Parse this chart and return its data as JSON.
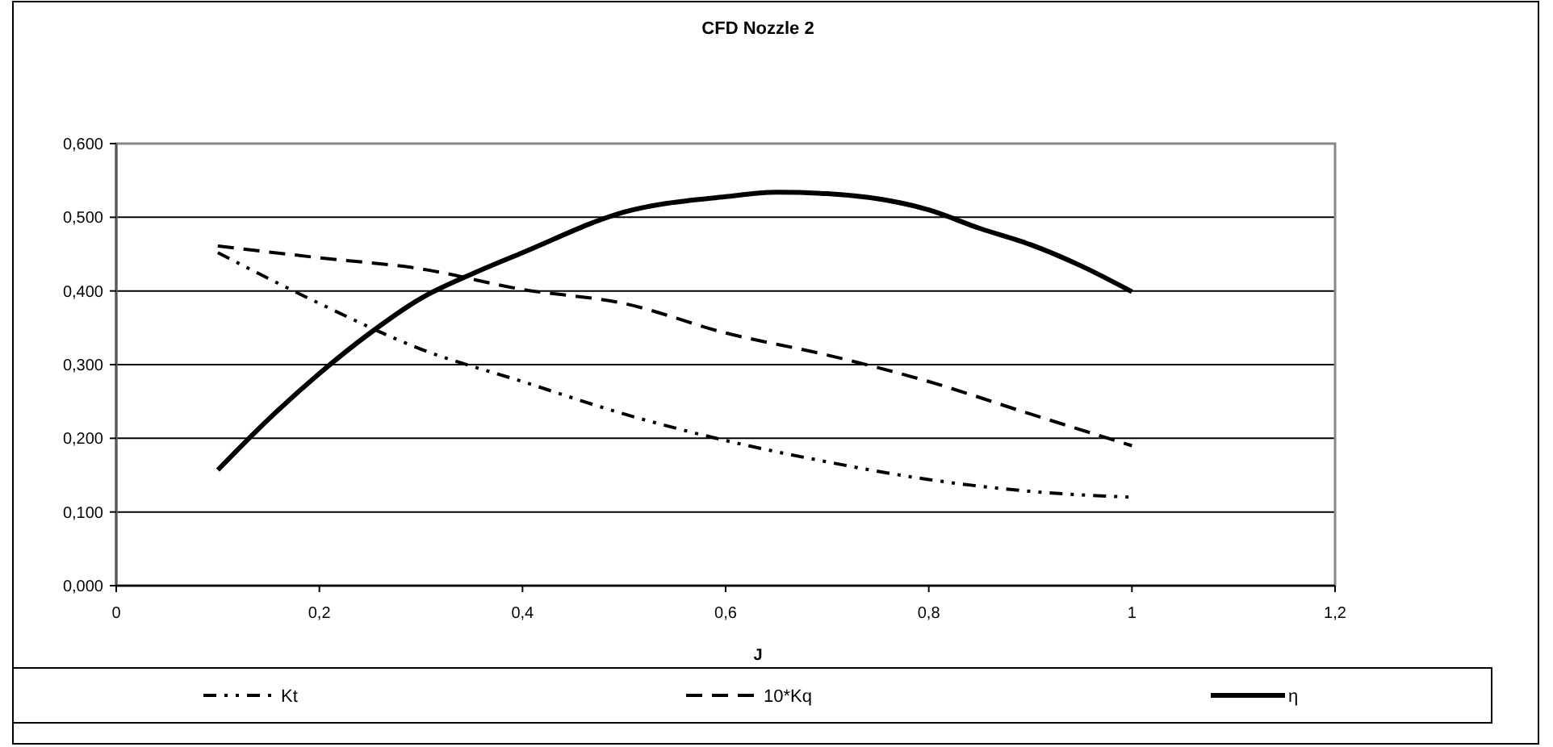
{
  "chart_data": {
    "type": "line",
    "title": "CFD Nozzle 2",
    "xlabel": "J",
    "xlim": [
      0,
      1.2
    ],
    "xticks": [
      0,
      {
        "value": 0.2,
        "label": "0,2"
      },
      {
        "value": 0.4,
        "label": "0,4"
      },
      {
        "value": 0.6,
        "label": "0,6"
      },
      {
        "value": 0.8,
        "label": "0,8"
      },
      1,
      {
        "value": 1.2,
        "label": "1,2"
      }
    ],
    "ylim": [
      0,
      0.6
    ],
    "yticks": [
      {
        "value": 0,
        "label": "0,000"
      },
      {
        "value": 0.1,
        "label": "0,100"
      },
      {
        "value": 0.2,
        "label": "0,200"
      },
      {
        "value": 0.3,
        "label": "0,300"
      },
      {
        "value": 0.4,
        "label": "0,400"
      },
      {
        "value": 0.5,
        "label": "0,500"
      },
      {
        "value": 0.6,
        "label": "0,600"
      }
    ],
    "grid": "y",
    "legend": "bottom",
    "marker": "none",
    "series": [
      {
        "name": "Kt",
        "color": "#000000",
        "line_style": "dotted",
        "x": [
          0.1,
          0.2,
          0.3,
          0.4,
          0.5,
          0.6,
          0.7,
          0.8,
          0.9,
          1.0
        ],
        "values": [
          0.452,
          0.383,
          0.321,
          0.277,
          0.233,
          0.197,
          0.168,
          0.144,
          0.128,
          0.12
        ]
      },
      {
        "name": "10*Kq",
        "color": "#000000",
        "line_style": "dashed",
        "x": [
          0.1,
          0.2,
          0.3,
          0.4,
          0.5,
          0.6,
          0.7,
          0.8,
          0.9,
          1.0
        ],
        "values": [
          0.461,
          0.445,
          0.43,
          0.402,
          0.383,
          0.343,
          0.313,
          0.277,
          0.233,
          0.19
        ]
      },
      {
        "name": "η",
        "color": "#000000",
        "line_style": "solid",
        "x": [
          0.1,
          0.15,
          0.2,
          0.25,
          0.3,
          0.35,
          0.4,
          0.5,
          0.6,
          0.65,
          0.7,
          0.8,
          0.85,
          0.9,
          0.95,
          1.0
        ],
        "values": [
          0.157,
          0.226,
          0.288,
          0.343,
          0.39,
          0.423,
          0.452,
          0.507,
          0.528,
          0.534,
          0.532,
          0.51,
          0.485,
          0.463,
          0.434,
          0.399
        ]
      }
    ]
  }
}
